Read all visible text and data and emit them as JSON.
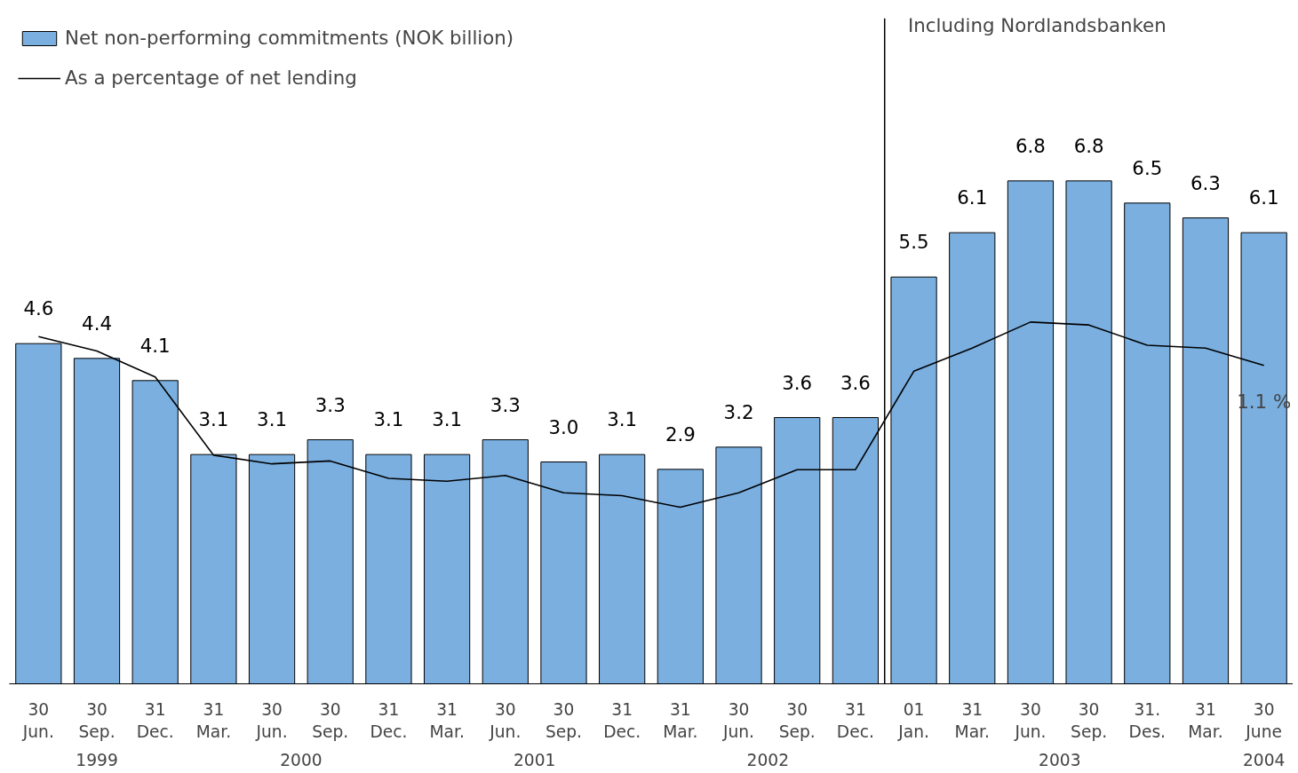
{
  "chart_data": {
    "type": "bar",
    "categories": [
      "30\nJun.",
      "30\nSep.",
      "31\nDec.",
      "31\nMar.",
      "30\nJun.",
      "30\nSep.",
      "31\nDec.",
      "31\nMar.",
      "30\nJun.",
      "30\nSep.",
      "31\nDec.",
      "31\nMar.",
      "30\nJun.",
      "30\nSep.",
      "31\nDec.",
      "01\nJan.",
      "31\nMar.",
      "30\nJun.",
      "30\nSep.",
      "31.\nDes.",
      "31\nMar.",
      "30\nJune"
    ],
    "ylim": [
      0,
      9
    ],
    "y2lim": [
      0,
      2.3
    ],
    "legend": "top left",
    "grid": false,
    "annotations": [
      "1999",
      "2000",
      "2001",
      "2002",
      "2003",
      "2004",
      "Including Nordlandsbanken"
    ],
    "series": [
      {
        "name": "Net non-performing commitments (NOK billion)",
        "color": "#7aafe0",
        "values": [
          4.6,
          4.4,
          4.1,
          3.1,
          3.1,
          3.3,
          3.1,
          3.1,
          3.3,
          3.0,
          3.1,
          2.9,
          3.2,
          3.6,
          3.6,
          5.5,
          6.1,
          6.8,
          6.8,
          6.5,
          6.3,
          6.1
        ],
        "value_labels": [
          "4.6",
          "4.4",
          "4.1",
          "3.1",
          "3.1",
          "3.3",
          "3.1",
          "3.1",
          "3.3",
          "3.0",
          "3.1",
          "2.9",
          "3.2",
          "3.6",
          "3.6",
          "5.5",
          "6.1",
          "6.8",
          "6.8",
          "6.5",
          "6.3",
          "6.1"
        ]
      },
      {
        "name": "As a percentage of net lending",
        "type": "line",
        "axis": "y2",
        "color": "#000000",
        "line_style": "solid",
        "values": [
          1.2,
          1.15,
          1.06,
          0.79,
          0.76,
          0.77,
          0.71,
          0.7,
          0.72,
          0.66,
          0.65,
          0.61,
          0.66,
          0.74,
          0.74,
          1.08,
          1.16,
          1.25,
          1.24,
          1.17,
          1.16,
          1.1
        ],
        "value_labels": [
          null,
          null,
          null,
          null,
          null,
          null,
          null,
          null,
          null,
          null,
          null,
          null,
          null,
          null,
          null,
          null,
          null,
          null,
          null,
          null,
          null,
          "1.1 %"
        ]
      }
    ]
  }
}
